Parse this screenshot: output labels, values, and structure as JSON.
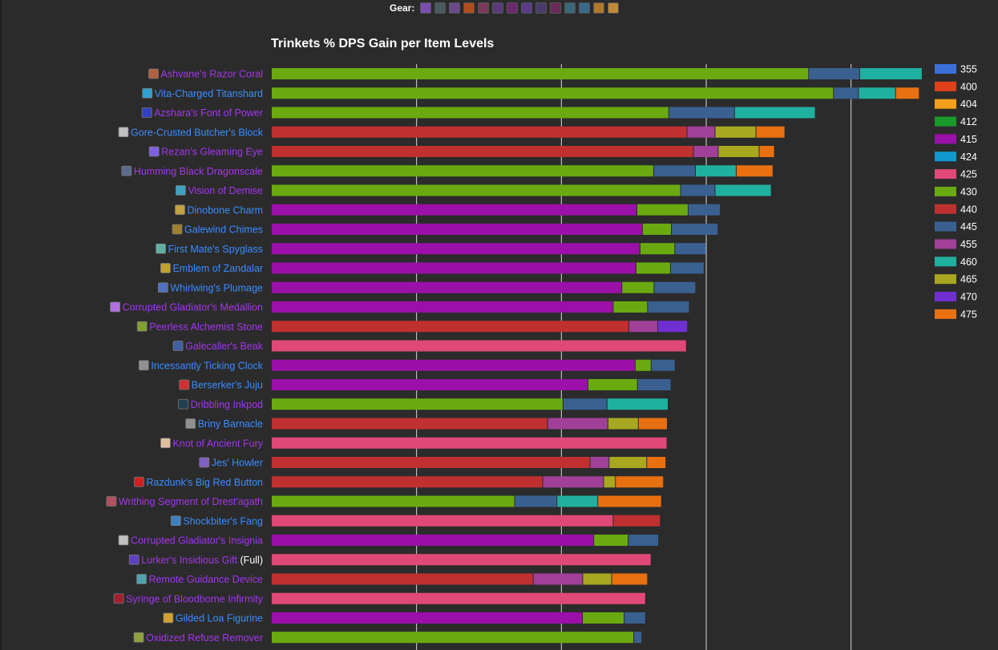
{
  "gear": {
    "label": "Gear:",
    "icons": [
      {
        "name": "gear-head-icon",
        "color": "#7a4fb0"
      },
      {
        "name": "gear-neck-icon",
        "color": "#4a5a60"
      },
      {
        "name": "gear-shoulder-icon",
        "color": "#6a4a8a"
      },
      {
        "name": "gear-back-icon",
        "color": "#b0501e"
      },
      {
        "name": "gear-chest-icon",
        "color": "#7a3a5a"
      },
      {
        "name": "gear-wrist-icon",
        "color": "#5a3a7a"
      },
      {
        "name": "gear-hands-icon",
        "color": "#6a2a6a"
      },
      {
        "name": "gear-waist-icon",
        "color": "#5a3a8a"
      },
      {
        "name": "gear-legs-icon",
        "color": "#4a3a6a"
      },
      {
        "name": "gear-feet-icon",
        "color": "#6a2a5a"
      },
      {
        "name": "gear-finger1-icon",
        "color": "#3a6a7a"
      },
      {
        "name": "gear-finger2-icon",
        "color": "#3a6a8a"
      },
      {
        "name": "gear-trinket1-icon",
        "color": "#b07a2a"
      },
      {
        "name": "gear-trinket2-icon",
        "color": "#c08a3a"
      }
    ]
  },
  "chart_data": {
    "type": "bar",
    "orientation": "horizontal",
    "stacked": true,
    "title": "Trinkets % DPS Gain per Item Levels",
    "legend_position": "right",
    "grid": true,
    "legend": [
      {
        "label": "355",
        "color": "#3a6fd8"
      },
      {
        "label": "400",
        "color": "#e0401a"
      },
      {
        "label": "404",
        "color": "#f5a01a"
      },
      {
        "label": "412",
        "color": "#1a9a2a"
      },
      {
        "label": "415",
        "color": "#9a10a8"
      },
      {
        "label": "424",
        "color": "#109ad0"
      },
      {
        "label": "425",
        "color": "#e04878"
      },
      {
        "label": "430",
        "color": "#6aaa10"
      },
      {
        "label": "440",
        "color": "#c03030"
      },
      {
        "label": "445",
        "color": "#3a6090"
      },
      {
        "label": "455",
        "color": "#a04098"
      },
      {
        "label": "460",
        "color": "#20b0a0"
      },
      {
        "label": "465",
        "color": "#a8a820"
      },
      {
        "label": "470",
        "color": "#7030d0"
      },
      {
        "label": "475",
        "color": "#e87010"
      }
    ],
    "items": [
      {
        "name": "Ashvane's Razor Coral",
        "quality": "epic",
        "icon_color": "#b06040",
        "segments": [
          {
            "ilvl": "430",
            "value": 18.55
          },
          {
            "ilvl": "445",
            "value": 1.76
          },
          {
            "ilvl": "460",
            "value": 2.16
          }
        ]
      },
      {
        "name": "Vita-Charged Titanshard",
        "quality": "rare",
        "icon_color": "#30a0d0",
        "segments": [
          {
            "ilvl": "430",
            "value": 19.41
          },
          {
            "ilvl": "445",
            "value": 0.86
          },
          {
            "ilvl": "460",
            "value": 1.28
          },
          {
            "ilvl": "475",
            "value": 0.82
          }
        ]
      },
      {
        "name": "Azshara's Font of Power",
        "quality": "epic",
        "icon_color": "#3040c0",
        "segments": [
          {
            "ilvl": "430",
            "value": 13.72
          },
          {
            "ilvl": "445",
            "value": 2.27
          },
          {
            "ilvl": "460",
            "value": 2.79
          }
        ]
      },
      {
        "name": "Gore-Crusted Butcher's Block",
        "quality": "rare",
        "icon_color": "#c0c0c0",
        "segments": [
          {
            "ilvl": "440",
            "value": 14.35
          },
          {
            "ilvl": "455",
            "value": 0.97
          },
          {
            "ilvl": "465",
            "value": 1.41
          },
          {
            "ilvl": "475",
            "value": 1.0
          }
        ]
      },
      {
        "name": "Rezan's Gleaming Eye",
        "quality": "epic",
        "icon_color": "#8060e0",
        "segments": [
          {
            "ilvl": "440",
            "value": 14.57
          },
          {
            "ilvl": "455",
            "value": 0.86
          },
          {
            "ilvl": "465",
            "value": 1.41
          },
          {
            "ilvl": "475",
            "value": 0.53
          }
        ]
      },
      {
        "name": "Humming Black Dragonscale",
        "quality": "epic",
        "icon_color": "#5a6a8a",
        "segments": [
          {
            "ilvl": "430",
            "value": 13.2
          },
          {
            "ilvl": "445",
            "value": 1.44
          },
          {
            "ilvl": "460",
            "value": 1.41
          },
          {
            "ilvl": "475",
            "value": 1.27
          }
        ]
      },
      {
        "name": "Vision of Demise",
        "quality": "epic",
        "icon_color": "#40a0c0",
        "segments": [
          {
            "ilvl": "430",
            "value": 14.13
          },
          {
            "ilvl": "445",
            "value": 1.19
          },
          {
            "ilvl": "460",
            "value": 1.94
          }
        ]
      },
      {
        "name": "Dinobone Charm",
        "quality": "rare",
        "icon_color": "#c0a040",
        "segments": [
          {
            "ilvl": "415",
            "value": 12.62
          },
          {
            "ilvl": "430",
            "value": 1.77
          },
          {
            "ilvl": "445",
            "value": 1.11
          }
        ]
      },
      {
        "name": "Galewind Chimes",
        "quality": "rare",
        "icon_color": "#a08030",
        "segments": [
          {
            "ilvl": "415",
            "value": 12.81
          },
          {
            "ilvl": "430",
            "value": 1.0
          },
          {
            "ilvl": "445",
            "value": 1.61
          }
        ]
      },
      {
        "name": "First Mate's Spyglass",
        "quality": "rare",
        "icon_color": "#60b0a0",
        "segments": [
          {
            "ilvl": "415",
            "value": 12.73
          },
          {
            "ilvl": "430",
            "value": 1.2
          },
          {
            "ilvl": "445",
            "value": 1.08
          }
        ]
      },
      {
        "name": "Emblem of Zandalar",
        "quality": "rare",
        "icon_color": "#c0a030",
        "segments": [
          {
            "ilvl": "415",
            "value": 12.59
          },
          {
            "ilvl": "430",
            "value": 1.19
          },
          {
            "ilvl": "445",
            "value": 1.16
          }
        ]
      },
      {
        "name": "Whirlwing's Plumage",
        "quality": "rare",
        "icon_color": "#5070c0",
        "segments": [
          {
            "ilvl": "415",
            "value": 12.1
          },
          {
            "ilvl": "430",
            "value": 1.11
          },
          {
            "ilvl": "445",
            "value": 1.44
          }
        ]
      },
      {
        "name": "Corrupted Gladiator's Medallion",
        "quality": "epic",
        "icon_color": "#b070e0",
        "segments": [
          {
            "ilvl": "415",
            "value": 11.8
          },
          {
            "ilvl": "430",
            "value": 1.19
          },
          {
            "ilvl": "445",
            "value": 1.44
          }
        ]
      },
      {
        "name": "Peerless Alchemist Stone",
        "quality": "epic",
        "icon_color": "#80a030",
        "segments": [
          {
            "ilvl": "440",
            "value": 12.34
          },
          {
            "ilvl": "455",
            "value": 1.0
          },
          {
            "ilvl": "470",
            "value": 1.03
          }
        ]
      },
      {
        "name": "Galecaller's Beak",
        "quality": "epic",
        "icon_color": "#4060a0",
        "segments": [
          {
            "ilvl": "425",
            "value": 14.33
          }
        ]
      },
      {
        "name": "Incessantly Ticking Clock",
        "quality": "rare",
        "icon_color": "#909090",
        "segments": [
          {
            "ilvl": "415",
            "value": 12.56
          },
          {
            "ilvl": "430",
            "value": 0.55
          },
          {
            "ilvl": "445",
            "value": 0.83
          }
        ]
      },
      {
        "name": "Berserker's Juju",
        "quality": "rare",
        "icon_color": "#d03030",
        "segments": [
          {
            "ilvl": "415",
            "value": 10.93
          },
          {
            "ilvl": "430",
            "value": 1.71
          },
          {
            "ilvl": "445",
            "value": 1.16
          }
        ]
      },
      {
        "name": "Dribbling Inkpod",
        "quality": "epic",
        "icon_color": "#204050",
        "segments": [
          {
            "ilvl": "430",
            "value": 10.07
          },
          {
            "ilvl": "445",
            "value": 1.52
          },
          {
            "ilvl": "460",
            "value": 2.11
          }
        ]
      },
      {
        "name": "Briny Barnacle",
        "quality": "rare",
        "icon_color": "#909090",
        "segments": [
          {
            "ilvl": "440",
            "value": 9.54
          },
          {
            "ilvl": "455",
            "value": 2.08
          },
          {
            "ilvl": "465",
            "value": 1.05
          },
          {
            "ilvl": "475",
            "value": 1.0
          }
        ]
      },
      {
        "name": "Knot of Ancient Fury",
        "quality": "epic",
        "icon_color": "#e0c0a0",
        "segments": [
          {
            "ilvl": "425",
            "value": 13.66
          }
        ]
      },
      {
        "name": "Jes' Howler",
        "quality": "rare",
        "icon_color": "#8060c0",
        "segments": [
          {
            "ilvl": "440",
            "value": 11.0
          },
          {
            "ilvl": "455",
            "value": 0.66
          },
          {
            "ilvl": "465",
            "value": 1.3
          },
          {
            "ilvl": "475",
            "value": 0.66
          }
        ]
      },
      {
        "name": "Razdunk's Big Red Button",
        "quality": "rare",
        "icon_color": "#d02020",
        "segments": [
          {
            "ilvl": "440",
            "value": 9.37
          },
          {
            "ilvl": "455",
            "value": 2.1
          },
          {
            "ilvl": "465",
            "value": 0.41
          },
          {
            "ilvl": "475",
            "value": 1.66
          }
        ]
      },
      {
        "name": "Writhing Segment of Drest'agath",
        "quality": "epic",
        "icon_color": "#b05060",
        "segments": [
          {
            "ilvl": "430",
            "value": 8.4
          },
          {
            "ilvl": "445",
            "value": 1.46
          },
          {
            "ilvl": "460",
            "value": 1.41
          },
          {
            "ilvl": "475",
            "value": 2.2
          }
        ]
      },
      {
        "name": "Shockbiter's Fang",
        "quality": "rare",
        "icon_color": "#4080c0",
        "segments": [
          {
            "ilvl": "425",
            "value": 11.8
          },
          {
            "ilvl": "440",
            "value": 1.63
          }
        ]
      },
      {
        "name": "Corrupted Gladiator's Insignia",
        "quality": "epic",
        "icon_color": "#c0c0c0",
        "segments": [
          {
            "ilvl": "415",
            "value": 11.13
          },
          {
            "ilvl": "430",
            "value": 1.19
          },
          {
            "ilvl": "445",
            "value": 1.05
          }
        ]
      },
      {
        "name": "Lurker's Insidious Gift",
        "suffix": "(Full)",
        "quality": "epic",
        "icon_color": "#6040c0",
        "segments": [
          {
            "ilvl": "425",
            "value": 13.11
          }
        ]
      },
      {
        "name": "Remote Guidance Device",
        "quality": "epic",
        "icon_color": "#50a0b0",
        "segments": [
          {
            "ilvl": "440",
            "value": 9.04
          },
          {
            "ilvl": "455",
            "value": 1.71
          },
          {
            "ilvl": "465",
            "value": 1.0
          },
          {
            "ilvl": "475",
            "value": 1.24
          }
        ]
      },
      {
        "name": "Syringe of Bloodborne Infirmity",
        "quality": "epic",
        "icon_color": "#a02030",
        "segments": [
          {
            "ilvl": "425",
            "value": 12.92
          }
        ]
      },
      {
        "name": "Gilded Loa Figurine",
        "quality": "rare",
        "icon_color": "#d0a030",
        "segments": [
          {
            "ilvl": "415",
            "value": 10.74
          },
          {
            "ilvl": "430",
            "value": 1.44
          },
          {
            "ilvl": "445",
            "value": 0.74
          }
        ]
      },
      {
        "name": "Oxidized Refuse Remover",
        "quality": "epic",
        "icon_color": "#90a040",
        "segments": [
          {
            "ilvl": "430",
            "value": 12.51
          },
          {
            "ilvl": "445",
            "value": 0.28
          }
        ]
      }
    ],
    "xlim": [
      0,
      22.5
    ],
    "grid_x": [
      5,
      10,
      15,
      20
    ]
  },
  "colors": {
    "background": "#2b2b2b",
    "grid": "#d8d8d8",
    "quality_epic": "#a335ee",
    "quality_rare": "#3a8cff",
    "suffix": "#ffffff"
  }
}
